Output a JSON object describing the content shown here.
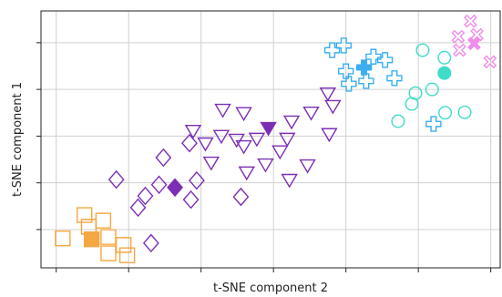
{
  "chart_data": {
    "type": "scatter",
    "xlabel": "t-SNE component 2",
    "ylabel": "t-SNE component 1",
    "xlim": [
      -0.21,
      6.13
    ],
    "ylim": [
      -0.82,
      4.68
    ],
    "xticks": [
      0,
      1,
      2,
      3,
      4,
      5,
      6
    ],
    "yticks": [
      0,
      1,
      2,
      3,
      4
    ],
    "grid": true,
    "series": [
      {
        "color": "#f5a742",
        "marker": "square",
        "filled": false,
        "x": [
          0.09,
          0.39,
          0.65,
          0.45,
          0.72,
          0.93,
          0.72,
          0.98
        ],
        "values": [
          -0.19,
          0.31,
          0.19,
          0.06,
          -0.16,
          -0.33,
          -0.51,
          -0.55
        ]
      },
      {
        "color": "#f5a742",
        "marker": "square",
        "filled": true,
        "x": [
          0.49
        ],
        "values": [
          -0.21
        ]
      },
      {
        "color": "#7b2fb5",
        "marker": "diamond",
        "filled": false,
        "x": [
          0.83,
          1.48,
          1.84,
          1.23,
          1.13,
          1.42,
          1.94,
          1.86,
          2.55,
          1.31
        ],
        "values": [
          1.07,
          1.54,
          1.85,
          0.72,
          0.47,
          0.96,
          1.05,
          0.64,
          0.7,
          -0.29
        ]
      },
      {
        "color": "#7b2fb5",
        "marker": "diamond",
        "filled": true,
        "x": [
          1.64
        ],
        "values": [
          0.9
        ]
      },
      {
        "color": "#7b2fb5",
        "marker": "triangle_down",
        "filled": false,
        "x": [
          1.89,
          2.06,
          2.3,
          2.59,
          2.28,
          2.49,
          2.77,
          2.59,
          2.14,
          2.63,
          2.89,
          3.25,
          3.19,
          3.09,
          3.52,
          3.75,
          3.82,
          3.77,
          3.47,
          3.22
        ],
        "values": [
          2.12,
          1.85,
          2.57,
          2.5,
          2.01,
          1.93,
          1.95,
          1.79,
          1.44,
          1.23,
          1.4,
          2.32,
          1.95,
          1.68,
          2.51,
          2.92,
          2.65,
          2.05,
          1.38,
          1.07
        ]
      },
      {
        "color": "#7b2fb5",
        "marker": "triangle_down",
        "filled": true,
        "x": [
          2.93
        ],
        "values": [
          2.18
        ]
      },
      {
        "color": "#3aaef0",
        "marker": "plus",
        "filled": false,
        "x": [
          3.81,
          3.97,
          4.0,
          4.04,
          4.28,
          4.38,
          4.54,
          4.67,
          5.21
        ],
        "values": [
          3.84,
          3.94,
          3.39,
          3.12,
          3.18,
          3.7,
          3.63,
          3.24,
          2.26
        ]
      },
      {
        "color": "#3aaef0",
        "marker": "plus",
        "filled": true,
        "x": [
          4.25
        ],
        "values": [
          3.47
        ]
      },
      {
        "color": "#3fdcc8",
        "marker": "circle",
        "filled": false,
        "x": [
          5.06,
          5.36,
          5.19,
          4.96,
          4.91,
          4.72,
          5.37,
          5.64
        ],
        "values": [
          3.84,
          3.68,
          3.0,
          2.92,
          2.69,
          2.32,
          2.5,
          2.51
        ]
      },
      {
        "color": "#3fdcc8",
        "marker": "circle",
        "filled": true,
        "x": [
          5.36
        ],
        "values": [
          3.35
        ]
      },
      {
        "color": "#ee8ee8",
        "marker": "x",
        "filled": false,
        "x": [
          5.72,
          5.55,
          5.81,
          5.57,
          5.99
        ],
        "values": [
          4.46,
          4.13,
          4.17,
          3.84,
          3.59
        ]
      },
      {
        "color": "#ee8ee8",
        "marker": "x",
        "filled": true,
        "x": [
          5.77
        ],
        "values": [
          3.98
        ]
      }
    ]
  }
}
